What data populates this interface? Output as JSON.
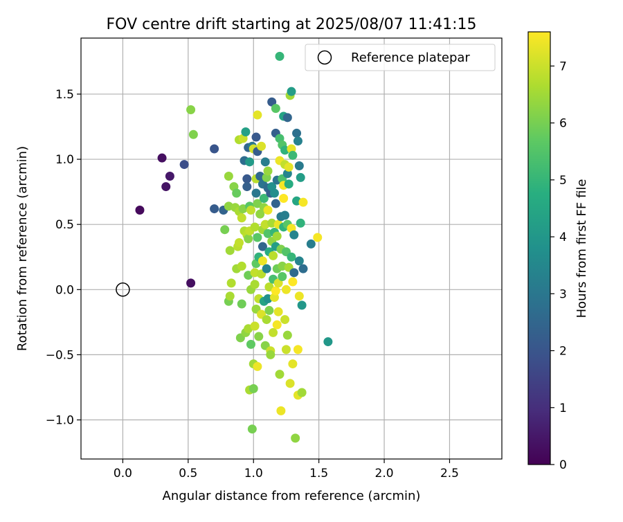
{
  "chart_data": {
    "type": "scatter",
    "title": "FOV centre drift starting at 2025/08/07 11:41:15",
    "xlabel": "Angular distance from reference (arcmin)",
    "ylabel": "Rotation from reference (arcmin)",
    "xlim": [
      -0.32,
      2.9
    ],
    "ylim": [
      -1.3,
      1.93
    ],
    "xticks": [
      "0.0",
      "0.5",
      "1.0",
      "1.5",
      "2.0",
      "2.5"
    ],
    "xtick_values": [
      0,
      0.5,
      1.0,
      1.5,
      2.0,
      2.5
    ],
    "yticks": [
      "−1.0",
      "−0.5",
      "0.0",
      "0.5",
      "1.0",
      "1.5"
    ],
    "ytick_values": [
      -1.0,
      -0.5,
      0.0,
      0.5,
      1.0,
      1.5
    ],
    "grid": true,
    "legend": {
      "position": "top-right",
      "entries": [
        "Reference platepar"
      ]
    },
    "reference_point": {
      "x": 0,
      "y": 0
    },
    "colorbar": {
      "label": "Hours from first FF file",
      "range": [
        0,
        7.6
      ],
      "ticks": [
        "0",
        "1",
        "2",
        "3",
        "4",
        "5",
        "6",
        "7"
      ],
      "tick_values": [
        0,
        1,
        2,
        3,
        4,
        5,
        6,
        7
      ],
      "colormap": "viridis"
    },
    "points": [
      {
        "x": 0.13,
        "y": 0.61,
        "h": 0.2
      },
      {
        "x": 0.3,
        "y": 1.01,
        "h": 0.3
      },
      {
        "x": 0.33,
        "y": 0.79,
        "h": 0.4
      },
      {
        "x": 0.36,
        "y": 0.87,
        "h": 0.5
      },
      {
        "x": 0.52,
        "y": 0.05,
        "h": 0.3
      },
      {
        "x": 0.47,
        "y": 0.96,
        "h": 1.8
      },
      {
        "x": 0.7,
        "y": 1.08,
        "h": 2.0
      },
      {
        "x": 0.7,
        "y": 0.62,
        "h": 2.2
      },
      {
        "x": 0.77,
        "y": 0.61,
        "h": 2.4
      },
      {
        "x": 0.52,
        "y": 1.38,
        "h": 6.2
      },
      {
        "x": 0.54,
        "y": 1.19,
        "h": 6.1
      },
      {
        "x": 0.78,
        "y": 0.46,
        "h": 6.0
      },
      {
        "x": 0.81,
        "y": 0.87,
        "h": 6.4
      },
      {
        "x": 0.81,
        "y": 0.64,
        "h": 6.3
      },
      {
        "x": 0.82,
        "y": 0.3,
        "h": 6.5
      },
      {
        "x": 0.81,
        "y": -0.09,
        "h": 6.0
      },
      {
        "x": 0.82,
        "y": -0.05,
        "h": 6.6
      },
      {
        "x": 0.83,
        "y": 0.05,
        "h": 6.7
      },
      {
        "x": 0.85,
        "y": 0.79,
        "h": 6.2
      },
      {
        "x": 0.87,
        "y": 0.74,
        "h": 5.8
      },
      {
        "x": 0.86,
        "y": 0.63,
        "h": 6.4
      },
      {
        "x": 0.87,
        "y": 0.16,
        "h": 6.5
      },
      {
        "x": 0.88,
        "y": 0.33,
        "h": 6.8
      },
      {
        "x": 0.89,
        "y": 0.36,
        "h": 6.9
      },
      {
        "x": 0.89,
        "y": 0.6,
        "h": 6.6
      },
      {
        "x": 0.89,
        "y": 1.15,
        "h": 6.7
      },
      {
        "x": 0.9,
        "y": -0.37,
        "h": 6.1
      },
      {
        "x": 0.91,
        "y": 0.18,
        "h": 6.7
      },
      {
        "x": 0.91,
        "y": 0.55,
        "h": 6.9
      },
      {
        "x": 0.91,
        "y": -0.11,
        "h": 5.9
      },
      {
        "x": 0.92,
        "y": 1.16,
        "h": 7.0
      },
      {
        "x": 0.92,
        "y": 0.62,
        "h": 6.2
      },
      {
        "x": 0.93,
        "y": 0.99,
        "h": 2.7
      },
      {
        "x": 0.93,
        "y": 0.45,
        "h": 6.7
      },
      {
        "x": 0.94,
        "y": 1.21,
        "h": 4.3
      },
      {
        "x": 0.94,
        "y": -0.33,
        "h": 6.3
      },
      {
        "x": 0.95,
        "y": 0.85,
        "h": 2.1
      },
      {
        "x": 0.95,
        "y": 0.79,
        "h": 2.3
      },
      {
        "x": 0.95,
        "y": 0.42,
        "h": 6.8
      },
      {
        "x": 0.96,
        "y": -0.3,
        "h": 6.6
      },
      {
        "x": 0.96,
        "y": 0.11,
        "h": 5.9
      },
      {
        "x": 0.96,
        "y": 0.39,
        "h": 6.2
      },
      {
        "x": 0.96,
        "y": 1.09,
        "h": 2.5
      },
      {
        "x": 0.97,
        "y": 0.98,
        "h": 4.1
      },
      {
        "x": 0.97,
        "y": 0.64,
        "h": 5.6
      },
      {
        "x": 0.97,
        "y": 0.45,
        "h": 6.9
      },
      {
        "x": 0.97,
        "y": -0.77,
        "h": 6.6
      },
      {
        "x": 0.98,
        "y": -0.42,
        "h": 5.7
      },
      {
        "x": 0.98,
        "y": 0.61,
        "h": 6.9
      },
      {
        "x": 0.98,
        "y": 0.0,
        "h": 6.4
      },
      {
        "x": 0.99,
        "y": -1.07,
        "h": 6.0
      },
      {
        "x": 0.99,
        "y": 1.1,
        "h": 3.0
      },
      {
        "x": 1.0,
        "y": -0.76,
        "h": 6.0
      },
      {
        "x": 1.0,
        "y": 1.08,
        "h": 7.1
      },
      {
        "x": 1.0,
        "y": -0.57,
        "h": 6.5
      },
      {
        "x": 1.01,
        "y": 0.48,
        "h": 6.7
      },
      {
        "x": 1.01,
        "y": 0.13,
        "h": 6.9
      },
      {
        "x": 1.01,
        "y": 0.04,
        "h": 6.6
      },
      {
        "x": 1.01,
        "y": -0.28,
        "h": 7.0
      },
      {
        "x": 1.02,
        "y": 1.17,
        "h": 2.1
      },
      {
        "x": 1.02,
        "y": 0.85,
        "h": 6.8
      },
      {
        "x": 1.02,
        "y": 0.74,
        "h": 3.0
      },
      {
        "x": 1.02,
        "y": 0.2,
        "h": 5.7
      },
      {
        "x": 1.02,
        "y": -0.15,
        "h": 6.4
      },
      {
        "x": 1.03,
        "y": 1.34,
        "h": 7.3
      },
      {
        "x": 1.03,
        "y": 1.06,
        "h": 2.2
      },
      {
        "x": 1.03,
        "y": 0.66,
        "h": 6.1
      },
      {
        "x": 1.03,
        "y": 0.4,
        "h": 5.6
      },
      {
        "x": 1.03,
        "y": -0.59,
        "h": 7.4
      },
      {
        "x": 1.04,
        "y": -0.07,
        "h": 6.9
      },
      {
        "x": 1.04,
        "y": -0.36,
        "h": 6.2
      },
      {
        "x": 1.04,
        "y": 0.25,
        "h": 4.9
      },
      {
        "x": 1.05,
        "y": 0.58,
        "h": 6.3
      },
      {
        "x": 1.05,
        "y": 0.87,
        "h": 2.6
      },
      {
        "x": 1.06,
        "y": 0.12,
        "h": 6.8
      },
      {
        "x": 1.06,
        "y": -0.19,
        "h": 7.2
      },
      {
        "x": 1.06,
        "y": 1.1,
        "h": 7.2
      },
      {
        "x": 1.07,
        "y": 0.46,
        "h": 6.5
      },
      {
        "x": 1.07,
        "y": 0.33,
        "h": 2.5
      },
      {
        "x": 1.07,
        "y": 0.22,
        "h": 7.4
      },
      {
        "x": 1.07,
        "y": 0.81,
        "h": 2.9
      },
      {
        "x": 1.08,
        "y": 0.7,
        "h": 5.1
      },
      {
        "x": 1.08,
        "y": 0.63,
        "h": 6.3
      },
      {
        "x": 1.08,
        "y": -0.09,
        "h": 4.4
      },
      {
        "x": 1.09,
        "y": 0.98,
        "h": 3.2
      },
      {
        "x": 1.09,
        "y": -0.43,
        "h": 6.2
      },
      {
        "x": 1.09,
        "y": 0.5,
        "h": 6.9
      },
      {
        "x": 1.1,
        "y": 0.86,
        "h": 6.1
      },
      {
        "x": 1.1,
        "y": 0.16,
        "h": 3.4
      },
      {
        "x": 1.1,
        "y": -0.23,
        "h": 6.6
      },
      {
        "x": 1.11,
        "y": 0.78,
        "h": 2.6
      },
      {
        "x": 1.11,
        "y": 0.61,
        "h": 7.4
      },
      {
        "x": 1.11,
        "y": 0.91,
        "h": 6.4
      },
      {
        "x": 1.11,
        "y": 0.43,
        "h": 5.5
      },
      {
        "x": 1.11,
        "y": -0.07,
        "h": 3.8
      },
      {
        "x": 1.12,
        "y": 0.29,
        "h": 4.7
      },
      {
        "x": 1.12,
        "y": -0.16,
        "h": 6.1
      },
      {
        "x": 1.12,
        "y": 0.02,
        "h": 6.8
      },
      {
        "x": 1.13,
        "y": 0.74,
        "h": 2.3
      },
      {
        "x": 1.13,
        "y": -0.47,
        "h": 7.0
      },
      {
        "x": 1.13,
        "y": -0.5,
        "h": 6.4
      },
      {
        "x": 1.14,
        "y": 1.44,
        "h": 2.2
      },
      {
        "x": 1.14,
        "y": 0.79,
        "h": 3.8
      },
      {
        "x": 1.14,
        "y": 0.51,
        "h": 6.6
      },
      {
        "x": 1.14,
        "y": 0.37,
        "h": 6.3
      },
      {
        "x": 1.15,
        "y": 0.26,
        "h": 6.8
      },
      {
        "x": 1.15,
        "y": -0.33,
        "h": 6.9
      },
      {
        "x": 1.15,
        "y": 0.08,
        "h": 5.3
      },
      {
        "x": 1.16,
        "y": 0.74,
        "h": 3.7
      },
      {
        "x": 1.16,
        "y": 0.44,
        "h": 5.0
      },
      {
        "x": 1.16,
        "y": -0.06,
        "h": 7.3
      },
      {
        "x": 1.17,
        "y": 1.39,
        "h": 5.6
      },
      {
        "x": 1.17,
        "y": 1.2,
        "h": 2.3
      },
      {
        "x": 1.17,
        "y": 0.66,
        "h": 2.4
      },
      {
        "x": 1.17,
        "y": 0.33,
        "h": 4.2
      },
      {
        "x": 1.17,
        "y": -0.01,
        "h": 7.6
      },
      {
        "x": 1.18,
        "y": 0.84,
        "h": 2.9
      },
      {
        "x": 1.18,
        "y": 0.41,
        "h": 6.5
      },
      {
        "x": 1.18,
        "y": 0.16,
        "h": 5.9
      },
      {
        "x": 1.18,
        "y": -0.27,
        "h": 7.5
      },
      {
        "x": 1.19,
        "y": 0.5,
        "h": 7.4
      },
      {
        "x": 1.19,
        "y": 0.05,
        "h": 7.2
      },
      {
        "x": 1.19,
        "y": -0.17,
        "h": 7.3
      },
      {
        "x": 1.2,
        "y": 1.79,
        "h": 5.0
      },
      {
        "x": 1.2,
        "y": 1.16,
        "h": 5.3
      },
      {
        "x": 1.2,
        "y": 0.99,
        "h": 7.4
      },
      {
        "x": 1.2,
        "y": -0.65,
        "h": 6.5
      },
      {
        "x": 1.21,
        "y": 0.56,
        "h": 3.1
      },
      {
        "x": 1.21,
        "y": 0.31,
        "h": 6.1
      },
      {
        "x": 1.21,
        "y": -0.93,
        "h": 7.4
      },
      {
        "x": 1.22,
        "y": 0.85,
        "h": 5.4
      },
      {
        "x": 1.22,
        "y": 1.11,
        "h": 5.5
      },
      {
        "x": 1.22,
        "y": 0.18,
        "h": 6.2
      },
      {
        "x": 1.22,
        "y": 0.1,
        "h": 5.6
      },
      {
        "x": 1.23,
        "y": 1.33,
        "h": 4.4
      },
      {
        "x": 1.23,
        "y": 0.8,
        "h": 7.5
      },
      {
        "x": 1.23,
        "y": 0.7,
        "h": 7.6
      },
      {
        "x": 1.23,
        "y": 0.48,
        "h": 4.9
      },
      {
        "x": 1.24,
        "y": 1.07,
        "h": 4.9
      },
      {
        "x": 1.24,
        "y": 0.96,
        "h": 6.9
      },
      {
        "x": 1.24,
        "y": 0.57,
        "h": 3.2
      },
      {
        "x": 1.24,
        "y": -0.23,
        "h": 7.0
      },
      {
        "x": 1.25,
        "y": 0.29,
        "h": 5.5
      },
      {
        "x": 1.25,
        "y": 0.0,
        "h": 7.4
      },
      {
        "x": 1.25,
        "y": -0.46,
        "h": 7.0
      },
      {
        "x": 1.26,
        "y": 1.32,
        "h": 2.5
      },
      {
        "x": 1.26,
        "y": 0.89,
        "h": 3.4
      },
      {
        "x": 1.26,
        "y": 0.5,
        "h": 5.6
      },
      {
        "x": 1.26,
        "y": -0.35,
        "h": 6.4
      },
      {
        "x": 1.27,
        "y": 0.94,
        "h": 7.3
      },
      {
        "x": 1.27,
        "y": 0.81,
        "h": 4.7
      },
      {
        "x": 1.27,
        "y": 0.17,
        "h": 6.6
      },
      {
        "x": 1.28,
        "y": 1.49,
        "h": 6.5
      },
      {
        "x": 1.28,
        "y": -0.72,
        "h": 7.2
      },
      {
        "x": 1.29,
        "y": 1.52,
        "h": 4.2
      },
      {
        "x": 1.29,
        "y": 1.08,
        "h": 7.3
      },
      {
        "x": 1.29,
        "y": 0.47,
        "h": 7.5
      },
      {
        "x": 1.29,
        "y": 0.25,
        "h": 5.0
      },
      {
        "x": 1.3,
        "y": -0.57,
        "h": 7.3
      },
      {
        "x": 1.3,
        "y": 1.03,
        "h": 5.1
      },
      {
        "x": 1.3,
        "y": 0.06,
        "h": 7.6
      },
      {
        "x": 1.31,
        "y": 0.42,
        "h": 3.4
      },
      {
        "x": 1.31,
        "y": 0.13,
        "h": 2.6
      },
      {
        "x": 1.32,
        "y": -1.14,
        "h": 6.3
      },
      {
        "x": 1.33,
        "y": 1.2,
        "h": 2.8
      },
      {
        "x": 1.33,
        "y": 0.68,
        "h": 4.5
      },
      {
        "x": 1.34,
        "y": 1.14,
        "h": 3.3
      },
      {
        "x": 1.34,
        "y": -0.46,
        "h": 7.5
      },
      {
        "x": 1.34,
        "y": -0.81,
        "h": 7.3
      },
      {
        "x": 1.35,
        "y": 0.95,
        "h": 3.1
      },
      {
        "x": 1.35,
        "y": 0.22,
        "h": 3.4
      },
      {
        "x": 1.35,
        "y": -0.05,
        "h": 7.4
      },
      {
        "x": 1.36,
        "y": 0.51,
        "h": 4.9
      },
      {
        "x": 1.36,
        "y": 0.86,
        "h": 4.2
      },
      {
        "x": 1.37,
        "y": -0.12,
        "h": 4.0
      },
      {
        "x": 1.37,
        "y": -0.79,
        "h": 6.5
      },
      {
        "x": 1.38,
        "y": 0.67,
        "h": 7.5
      },
      {
        "x": 1.38,
        "y": 0.16,
        "h": 2.7
      },
      {
        "x": 1.44,
        "y": 0.35,
        "h": 3.2
      },
      {
        "x": 1.49,
        "y": 0.4,
        "h": 7.5
      },
      {
        "x": 1.57,
        "y": -0.4,
        "h": 4.0
      }
    ]
  }
}
